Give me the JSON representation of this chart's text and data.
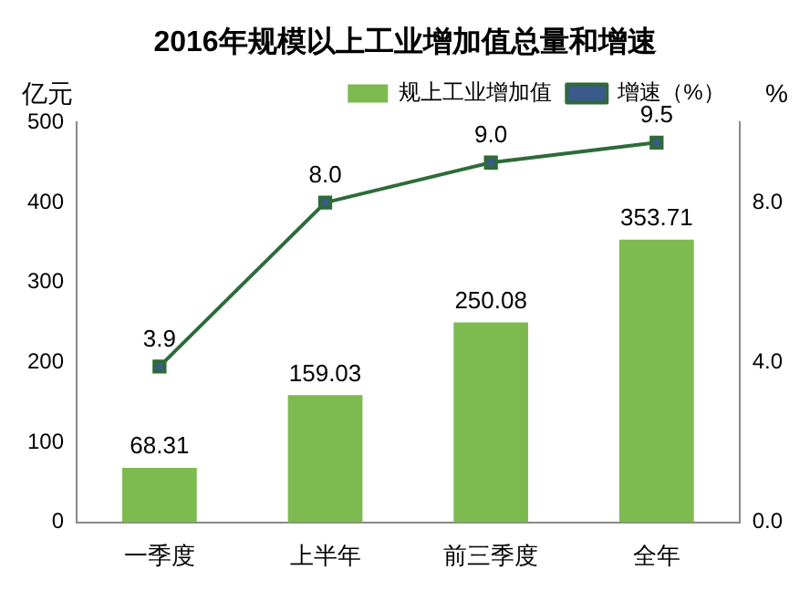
{
  "chart_data": {
    "type": "bar",
    "title": "2016年规模以上工业增加值总量和增速",
    "categories": [
      "一季度",
      "上半年",
      "前三季度",
      "全年"
    ],
    "series": [
      {
        "name": "规上工业增加值",
        "color": "#7dba4f",
        "values": [
          68.31,
          159.03,
          250.08,
          353.71
        ],
        "value_labels": [
          "68.31",
          "159.03",
          "250.08",
          "353.71"
        ]
      },
      {
        "name": "增速（%）",
        "type": "line",
        "axis": "y2",
        "color": "#2e6b3a",
        "marker": "square",
        "values": [
          3.9,
          8.0,
          9.0,
          9.5
        ],
        "value_labels": [
          "3.9",
          "8.0",
          "9.0",
          "9.5"
        ]
      }
    ],
    "ylabel": "亿元",
    "y2label": "%",
    "ylim": [
      0,
      500
    ],
    "yticks": [
      0,
      100,
      200,
      300,
      400,
      500
    ],
    "y2lim": [
      0,
      10
    ],
    "y2ticks": [
      {
        "value": 0,
        "label": "0.0"
      },
      {
        "value": 4,
        "label": "4.0"
      },
      {
        "value": 8,
        "label": "8.0"
      }
    ],
    "legend": "top right",
    "grid": false
  }
}
